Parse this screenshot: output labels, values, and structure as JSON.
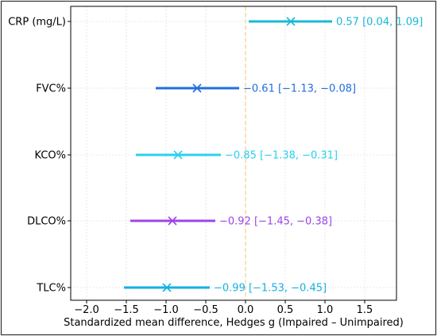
{
  "chart_data": {
    "type": "forest",
    "title": "",
    "xlabel": "Standardized mean difference, Hedges g (Impaired – Unimpaired)",
    "ylabel": "",
    "xlim": [
      -2.2,
      1.9
    ],
    "xticks": [
      -2.0,
      -1.5,
      -1.0,
      -0.5,
      0.0,
      0.5,
      1.0,
      1.5
    ],
    "xtick_labels": [
      "−2.0",
      "−1.5",
      "−1.0",
      "−0.5",
      "0.0",
      "0.5",
      "1.0",
      "1.5"
    ],
    "grid": true,
    "reference_line": 0,
    "reference_color": "#f5cf8a",
    "rows": [
      {
        "label": "CRP (mg/L)",
        "estimate": 0.57,
        "lower": 0.04,
        "upper": 1.09,
        "color": "#19b9d4",
        "text": "0.57 [0.04, 1.09]"
      },
      {
        "label": "FVC%",
        "estimate": -0.61,
        "lower": -1.13,
        "upper": -0.08,
        "color": "#1f6fe0",
        "text": "−0.61 [−1.13, −0.08]"
      },
      {
        "label": "KCO%",
        "estimate": -0.85,
        "lower": -1.38,
        "upper": -0.31,
        "color": "#2ad2ef",
        "text": "−0.85 [−1.38, −0.31]"
      },
      {
        "label": "DLCO%",
        "estimate": -0.92,
        "lower": -1.45,
        "upper": -0.38,
        "color": "#9d45ea",
        "text": "−0.92 [−1.45, −0.38]"
      },
      {
        "label": "TLC%",
        "estimate": -0.99,
        "lower": -1.53,
        "upper": -0.45,
        "color": "#14b1e3",
        "text": "−0.99 [−1.53, −0.45]"
      }
    ]
  }
}
